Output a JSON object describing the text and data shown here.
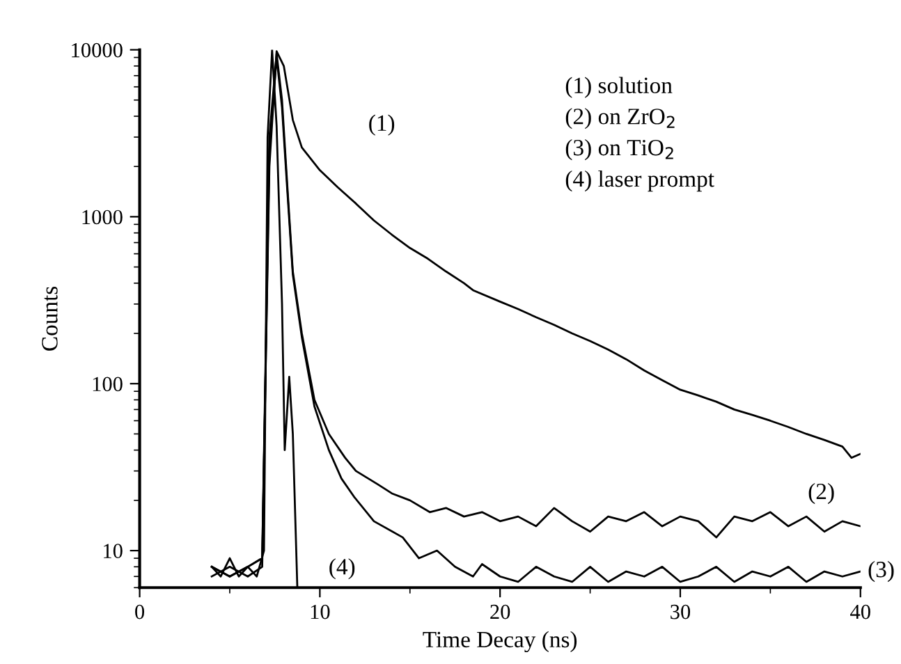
{
  "chart_data": {
    "type": "line",
    "xlabel": "Time Decay (ns)",
    "ylabel": "Counts",
    "log": "y",
    "xlim": [
      0,
      40
    ],
    "xticks": [
      0,
      10,
      20,
      30,
      40
    ],
    "ylim": [
      6,
      10000
    ],
    "yticks": [
      10,
      100,
      1000,
      10000
    ],
    "grid": false,
    "legend": false,
    "marker": "none",
    "line_style": "solid",
    "series": [
      {
        "name": "(1)",
        "color": "#000000",
        "x": [
          4,
          5,
          6,
          6.8,
          7.2,
          7.6,
          8.0,
          8.5,
          9,
          10,
          11,
          12,
          13,
          14,
          15,
          16,
          17,
          18,
          18.5,
          20,
          21,
          22,
          23,
          24,
          25,
          26,
          27,
          28,
          29,
          30,
          31,
          32,
          33,
          34,
          35,
          36,
          37,
          38,
          39,
          39.5,
          40
        ],
        "values": [
          8,
          7,
          8,
          9,
          2000,
          9800,
          8000,
          3800,
          2600,
          1900,
          1500,
          1200,
          950,
          780,
          650,
          560,
          470,
          400,
          363,
          310,
          280,
          250,
          225,
          200,
          180,
          160,
          140,
          120,
          105,
          92,
          85,
          78,
          70,
          65,
          60,
          55,
          50,
          46,
          42,
          36,
          38
        ]
      },
      {
        "name": "(2)",
        "color": "#000000",
        "x": [
          4,
          5,
          6,
          6.8,
          7.2,
          7.6,
          7.9,
          8.2,
          8.5,
          9,
          9.7,
          10.5,
          11.4,
          12,
          13.2,
          14,
          15,
          16.1,
          17,
          18,
          19,
          20,
          21,
          22,
          23,
          24,
          25,
          26,
          27,
          28,
          29,
          30,
          31,
          32,
          33,
          34,
          35,
          36,
          37,
          38,
          39,
          40
        ],
        "values": [
          8,
          7,
          8,
          9,
          3000,
          9500,
          5000,
          1500,
          470,
          200,
          80,
          50,
          36,
          30,
          25,
          22,
          20,
          17,
          18,
          16,
          17,
          15,
          16,
          14,
          18,
          15,
          13,
          16,
          15,
          17,
          14,
          16,
          15,
          12,
          16,
          15,
          17,
          14,
          16,
          13,
          15,
          14
        ]
      },
      {
        "name": "(3)",
        "color": "#000000",
        "x": [
          4,
          5,
          6,
          6.8,
          7.2,
          7.6,
          7.9,
          8.2,
          8.5,
          9,
          9.7,
          10.5,
          11.2,
          11.9,
          13,
          14.6,
          15.5,
          16.5,
          17.5,
          18.5,
          19,
          20,
          21,
          22,
          23,
          24,
          25,
          26,
          27,
          28,
          29,
          30,
          31,
          32,
          33,
          34,
          35,
          36,
          37,
          38,
          39,
          40
        ],
        "values": [
          7,
          8,
          7,
          8,
          2500,
          9000,
          4500,
          1400,
          450,
          190,
          73,
          40,
          27,
          21,
          15,
          12,
          9,
          10,
          8,
          7,
          8.3,
          7,
          6.5,
          8,
          7,
          6.5,
          8,
          6.5,
          7.5,
          7,
          8,
          6.5,
          7,
          8,
          6.5,
          7.5,
          7,
          8,
          6.5,
          7.5,
          7,
          7.5
        ]
      },
      {
        "name": "(4)",
        "color": "#000000",
        "x": [
          4,
          4.5,
          5,
          5.5,
          6,
          6.5,
          6.9,
          7.1,
          7.35,
          7.6,
          7.9,
          8.05,
          8.3,
          8.5,
          8.75
        ],
        "values": [
          8,
          7,
          9,
          7,
          8,
          7,
          10,
          3000,
          10000,
          3500,
          300,
          40,
          110,
          50,
          6
        ]
      }
    ],
    "annotations": [
      "(1) solution",
      "(2) on ZrO$_{2}$",
      "(3) on TiO$_{2}$",
      "(4) laser prompt"
    ]
  }
}
